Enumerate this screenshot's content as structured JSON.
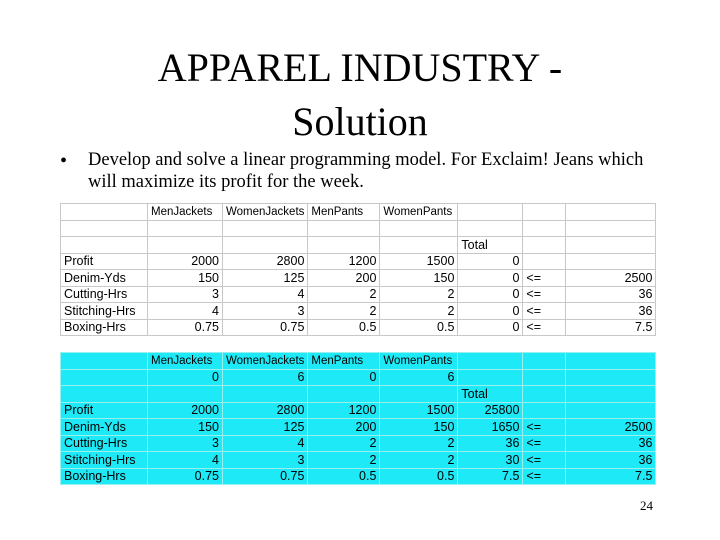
{
  "slide": {
    "title_line1": "APPAREL INDUSTRY -",
    "title_line2": "Solution",
    "bullet_symbol": "•",
    "bullet_text": "Develop and solve a linear programming model. For Exclaim! Jeans which will maximize its profit for the week.",
    "page_number": "24"
  },
  "colors": {
    "table2_bg": "#1ee9f6",
    "gridline": "#c8c8c8"
  },
  "table1": {
    "rows": [
      [
        "",
        "MenJackets",
        "WomenJackets",
        "MenPants",
        "WomenPants",
        "",
        "",
        ""
      ],
      [
        "",
        "",
        "",
        "",
        "",
        "",
        "",
        ""
      ],
      [
        "",
        "",
        "",
        "",
        "",
        "Total",
        "",
        ""
      ],
      [
        "Profit",
        "2000",
        "2800",
        "1200",
        "1500",
        "0",
        "",
        ""
      ],
      [
        "Denim-Yds",
        "150",
        "125",
        "200",
        "150",
        "0",
        "<=",
        "2500"
      ],
      [
        "Cutting-Hrs",
        "3",
        "4",
        "2",
        "2",
        "0",
        "<=",
        "36"
      ],
      [
        "Stitching-Hrs",
        "4",
        "3",
        "2",
        "2",
        "0",
        "<=",
        "36"
      ],
      [
        "Boxing-Hrs",
        "0.75",
        "0.75",
        "0.5",
        "0.5",
        "0",
        "<=",
        "7.5"
      ]
    ]
  },
  "table2": {
    "rows": [
      [
        "",
        "MenJackets",
        "WomenJackets",
        "MenPants",
        "WomenPants",
        "",
        "",
        ""
      ],
      [
        "",
        "0",
        "6",
        "0",
        "6",
        "",
        "",
        ""
      ],
      [
        "",
        "",
        "",
        "",
        "",
        "Total",
        "",
        ""
      ],
      [
        "Profit",
        "2000",
        "2800",
        "1200",
        "1500",
        "25800",
        "",
        ""
      ],
      [
        "Denim-Yds",
        "150",
        "125",
        "200",
        "150",
        "1650",
        "<=",
        "2500"
      ],
      [
        "Cutting-Hrs",
        "3",
        "4",
        "2",
        "2",
        "36",
        "<=",
        "36"
      ],
      [
        "Stitching-Hrs",
        "4",
        "3",
        "2",
        "2",
        "30",
        "<=",
        "36"
      ],
      [
        "Boxing-Hrs",
        "0.75",
        "0.75",
        "0.5",
        "0.5",
        "7.5",
        "<=",
        "7.5"
      ]
    ]
  }
}
